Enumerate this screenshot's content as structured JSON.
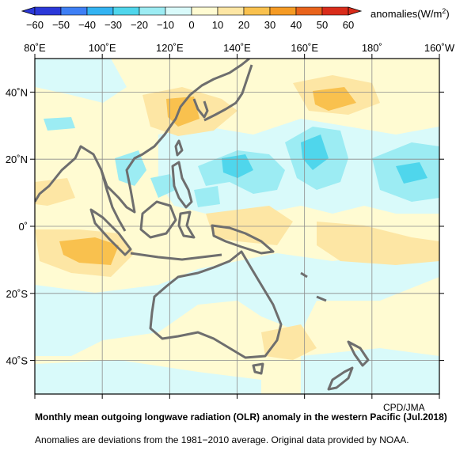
{
  "colorbar": {
    "units_label": "anomalies(W/m",
    "units_sup": "2",
    "units_close": ")",
    "ticks": [
      "−60",
      "−50",
      "−40",
      "−30",
      "−20",
      "−10",
      "0",
      "10",
      "20",
      "30",
      "40",
      "50",
      "60"
    ],
    "colors": [
      "#2b38d9",
      "#3e7ff5",
      "#33b3f2",
      "#4fd6ec",
      "#9cecf3",
      "#d9fafa",
      "#fffbd2",
      "#fde6a4",
      "#f9c14e",
      "#f59b24",
      "#e9631b",
      "#d92c1a"
    ]
  },
  "map": {
    "x_labels": [
      "80˚E",
      "100˚E",
      "120˚E",
      "140˚E",
      "160˚E",
      "180˚",
      "160˚W"
    ],
    "y_labels": [
      "40˚N",
      "20˚N",
      "0˚",
      "20˚S",
      "40˚S"
    ],
    "ocean_color": "#fffbd2",
    "land_outline_color": "#6e6e6e"
  },
  "credit": "CPD/JMA",
  "caption": {
    "title": "Monthly mean outgoing longwave radiation (OLR) anomaly in the western Pacific (Jul.2018)",
    "note": "Anomalies are deviations from the 1981−2010 average. Original data provided by NOAA."
  }
}
